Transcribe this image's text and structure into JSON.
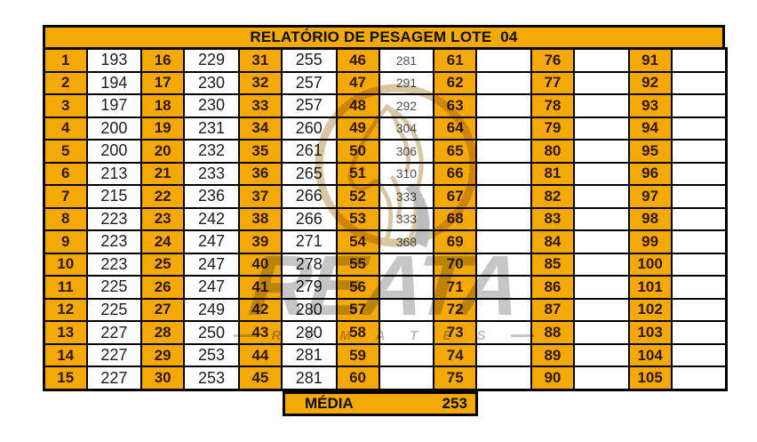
{
  "title": "RELATÓRIO DE PESAGEM LOTE  04",
  "footer": {
    "label": "MÉDIA",
    "value": "253"
  },
  "watermark": {
    "brand": "REATA",
    "subtitle": "R E M A T E S",
    "icon": "horse-head-in-lasso-icon"
  },
  "colors": {
    "cell_orange": "#F4A904",
    "border": "#000000",
    "number_text": "#33180A",
    "value_text": "#1C1C1C",
    "muted_value_text": "#505050",
    "watermark_gray": "#C6C6C6",
    "watermark_tan": "#D9C7A4"
  },
  "grid": {
    "rows": 15,
    "pairs": [
      {
        "numbers": [
          1,
          2,
          3,
          4,
          5,
          6,
          7,
          8,
          9,
          10,
          11,
          12,
          13,
          14,
          15
        ],
        "weights": [
          "193",
          "194",
          "197",
          "200",
          "200",
          "213",
          "215",
          "223",
          "223",
          "223",
          "225",
          "225",
          "227",
          "227",
          "227"
        ],
        "muted": false
      },
      {
        "numbers": [
          16,
          17,
          18,
          19,
          20,
          21,
          22,
          23,
          24,
          25,
          26,
          27,
          28,
          29,
          30
        ],
        "weights": [
          "229",
          "230",
          "230",
          "231",
          "232",
          "233",
          "236",
          "242",
          "247",
          "247",
          "247",
          "249",
          "250",
          "253",
          "253"
        ],
        "muted": false
      },
      {
        "numbers": [
          31,
          32,
          33,
          34,
          35,
          36,
          37,
          38,
          39,
          40,
          41,
          42,
          43,
          44,
          45
        ],
        "weights": [
          "255",
          "257",
          "257",
          "260",
          "261",
          "265",
          "266",
          "266",
          "271",
          "278",
          "279",
          "280",
          "280",
          "281",
          "281"
        ],
        "muted": false
      },
      {
        "numbers": [
          46,
          47,
          48,
          49,
          50,
          51,
          52,
          53,
          54,
          55,
          56,
          57,
          58,
          59,
          60
        ],
        "weights": [
          "281",
          "291",
          "292",
          "304",
          "306",
          "310",
          "333",
          "333",
          "368",
          "",
          "",
          "",
          "",
          "",
          ""
        ],
        "muted": true
      },
      {
        "numbers": [
          61,
          62,
          63,
          64,
          65,
          66,
          67,
          68,
          69,
          70,
          71,
          72,
          73,
          74,
          75
        ],
        "weights": [
          "",
          "",
          "",
          "",
          "",
          "",
          "",
          "",
          "",
          "",
          "",
          "",
          "",
          "",
          ""
        ],
        "muted": false
      },
      {
        "numbers": [
          76,
          77,
          78,
          79,
          80,
          81,
          82,
          83,
          84,
          85,
          86,
          87,
          88,
          89,
          90
        ],
        "weights": [
          "",
          "",
          "",
          "",
          "",
          "",
          "",
          "",
          "",
          "",
          "",
          "",
          "",
          "",
          ""
        ],
        "muted": false
      },
      {
        "numbers": [
          91,
          92,
          93,
          94,
          95,
          96,
          97,
          98,
          99,
          100,
          101,
          102,
          103,
          104,
          105
        ],
        "weights": [
          "",
          "",
          "",
          "",
          "",
          "",
          "",
          "",
          "",
          "",
          "",
          "",
          "",
          "",
          ""
        ],
        "muted": false
      }
    ]
  }
}
